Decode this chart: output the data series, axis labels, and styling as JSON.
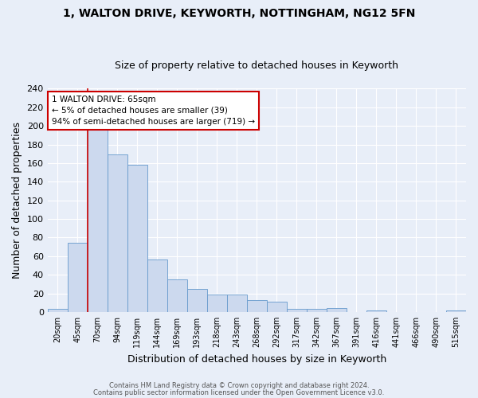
{
  "title1": "1, WALTON DRIVE, KEYWORTH, NOTTINGHAM, NG12 5FN",
  "title2": "Size of property relative to detached houses in Keyworth",
  "xlabel": "Distribution of detached houses by size in Keyworth",
  "ylabel": "Number of detached properties",
  "bar_color": "#ccd9ee",
  "bar_edge_color": "#6699cc",
  "tick_labels": [
    "20sqm",
    "45sqm",
    "70sqm",
    "94sqm",
    "119sqm",
    "144sqm",
    "169sqm",
    "193sqm",
    "218sqm",
    "243sqm",
    "268sqm",
    "292sqm",
    "317sqm",
    "342sqm",
    "367sqm",
    "391sqm",
    "416sqm",
    "441sqm",
    "466sqm",
    "490sqm",
    "515sqm"
  ],
  "bar_values": [
    3,
    74,
    199,
    169,
    158,
    56,
    35,
    25,
    19,
    19,
    13,
    11,
    3,
    3,
    4,
    0,
    2,
    0,
    0,
    0,
    2
  ],
  "vline_x_index": 2,
  "vline_color": "#cc0000",
  "annotation_line1": "1 WALTON DRIVE: 65sqm",
  "annotation_line2": "← 5% of detached houses are smaller (39)",
  "annotation_line3": "94% of semi-detached houses are larger (719) →",
  "ylim": [
    0,
    240
  ],
  "yticks": [
    0,
    20,
    40,
    60,
    80,
    100,
    120,
    140,
    160,
    180,
    200,
    220,
    240
  ],
  "footer1": "Contains HM Land Registry data © Crown copyright and database right 2024.",
  "footer2": "Contains public sector information licensed under the Open Government Licence v3.0.",
  "bg_color": "#e8eef8",
  "grid_color": "#ffffff",
  "title1_fontsize": 10,
  "title2_fontsize": 9,
  "ylabel_fontsize": 9,
  "xlabel_fontsize": 9
}
